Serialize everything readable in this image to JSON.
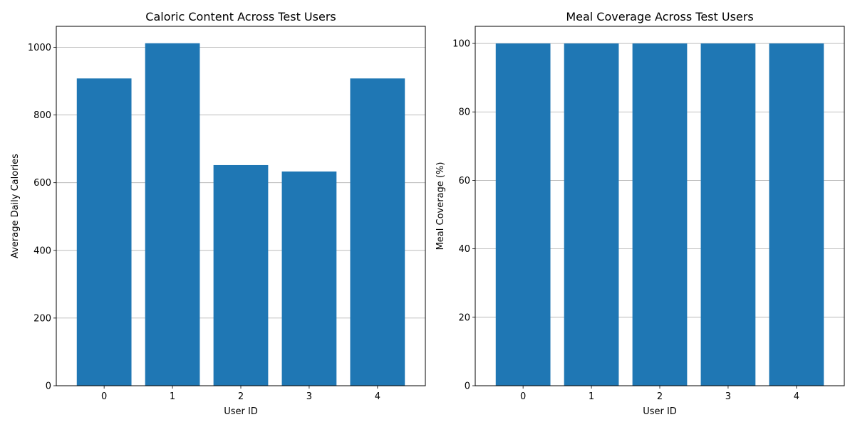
{
  "chart_data": [
    {
      "type": "bar",
      "title": "Caloric Content Across Test Users",
      "xlabel": "User ID",
      "ylabel": "Average Daily Calories",
      "categories": [
        "0",
        "1",
        "2",
        "3",
        "4"
      ],
      "values": [
        908,
        1012,
        652,
        633,
        908
      ],
      "ylim": [
        0,
        1062
      ],
      "yticks": [
        0,
        200,
        400,
        600,
        800,
        1000
      ],
      "grid": "y",
      "bar_color": "#1f77b4"
    },
    {
      "type": "bar",
      "title": "Meal Coverage Across Test Users",
      "xlabel": "User ID",
      "ylabel": "Meal Coverage (%)",
      "categories": [
        "0",
        "1",
        "2",
        "3",
        "4"
      ],
      "values": [
        100,
        100,
        100,
        100,
        100
      ],
      "ylim": [
        0,
        105
      ],
      "yticks": [
        0,
        20,
        40,
        60,
        80,
        100
      ],
      "grid": "y",
      "bar_color": "#1f77b4"
    }
  ]
}
